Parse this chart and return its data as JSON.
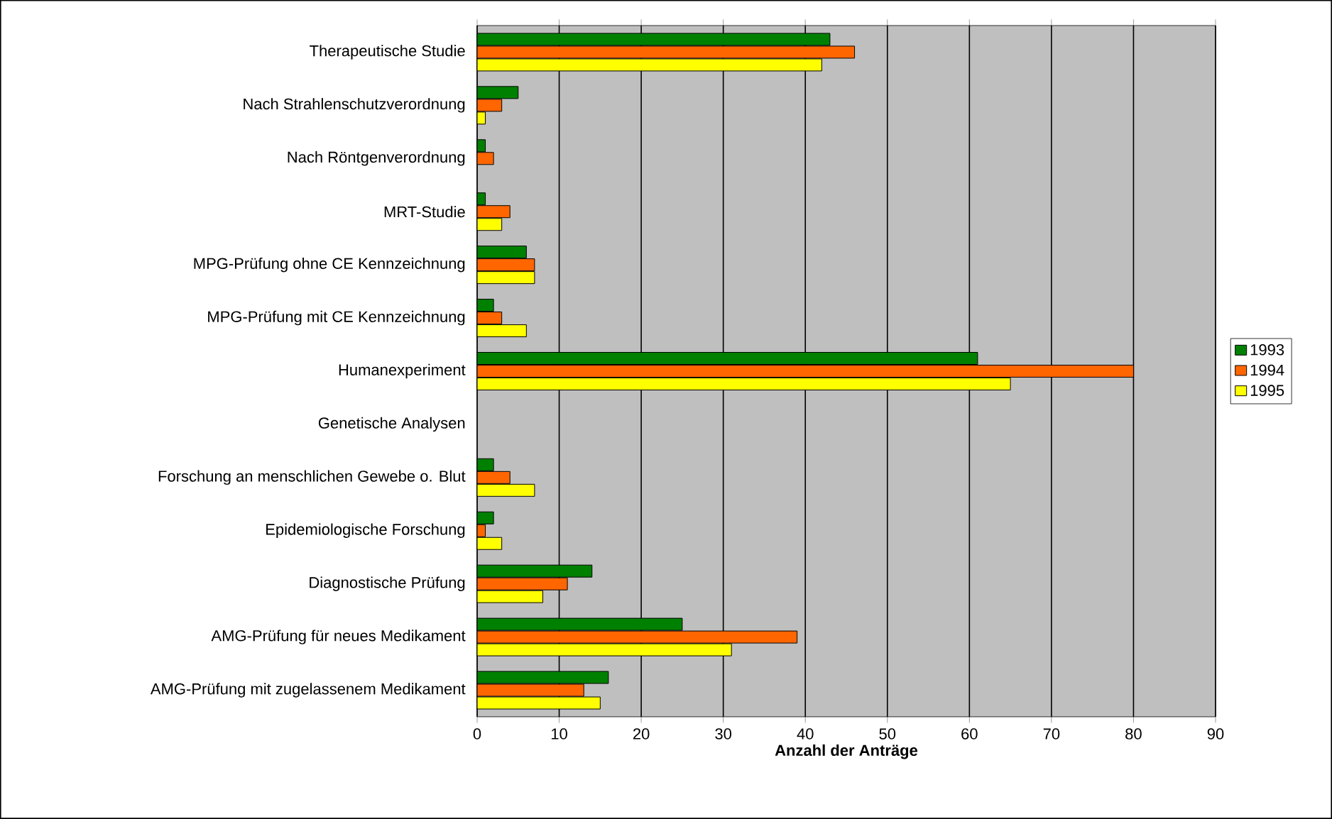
{
  "chart_data": {
    "type": "bar",
    "orientation": "horizontal",
    "xlabel": "Anzahl der Anträge",
    "categories": [
      "Therapeutische Studie",
      "Nach Strahlenschutzverordnung",
      "Nach Röntgenverordnung",
      "MRT-Studie",
      "MPG-Prüfung ohne CE Kennzeichnung",
      "MPG-Prüfung mit CE Kennzeichnung",
      "Humanexperiment",
      "Genetische Analysen",
      "Forschung an menschlichen Gewebe o. Blut",
      "Epidemiologische Forschung",
      "Diagnostische Prüfung",
      "AMG-Prüfung für neues Medikament",
      "AMG-Prüfung mit zugelassenem Medikament"
    ],
    "series": [
      {
        "name": "1993",
        "color": "#008000",
        "values": [
          43,
          5,
          1,
          1,
          6,
          2,
          61,
          0,
          2,
          2,
          14,
          25,
          16
        ]
      },
      {
        "name": "1994",
        "color": "#ff6600",
        "values": [
          46,
          3,
          2,
          4,
          7,
          3,
          80,
          0,
          4,
          1,
          11,
          39,
          13
        ]
      },
      {
        "name": "1995",
        "color": "#ffff00",
        "values": [
          42,
          1,
          0,
          3,
          7,
          6,
          65,
          0,
          7,
          3,
          8,
          31,
          15
        ]
      }
    ],
    "xlim": [
      0,
      90
    ],
    "xticks": [
      0,
      10,
      20,
      30,
      40,
      50,
      60,
      70,
      80,
      90
    ],
    "grid": "x",
    "legend": "right"
  }
}
